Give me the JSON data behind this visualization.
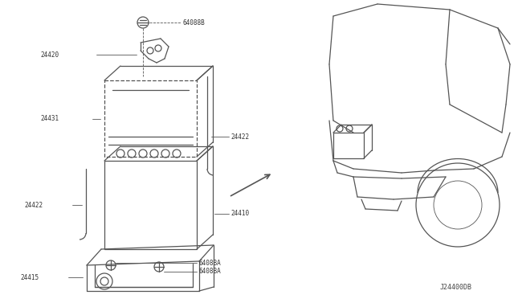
{
  "bg_color": "#ffffff",
  "line_color": "#555555",
  "diagram_id": "J24400DB",
  "labels": {
    "64088B": "64088B",
    "24420": "24420",
    "24431": "24431",
    "24422a": "24422",
    "24422b": "24422",
    "24410": "24410",
    "24415": "24415",
    "64088A_top": "6408BA",
    "64088A_bot": "6408BA"
  }
}
